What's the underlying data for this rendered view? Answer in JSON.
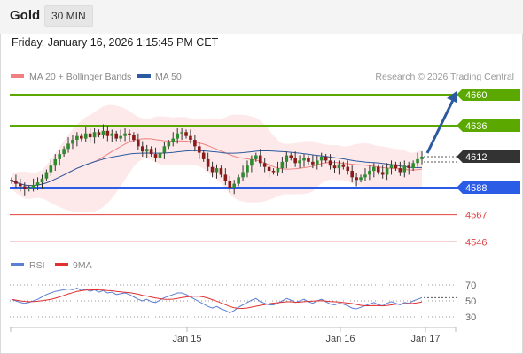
{
  "header": {
    "symbol": "Gold",
    "timeframe": "30 MIN",
    "datetime": "Friday, January 16, 2026 1:15:45 PM CET"
  },
  "legend": {
    "bollinger_label": "MA 20 + Bollinger Bands",
    "ma50_label": "MA 50",
    "credit": "Research © 2026 Trading Central",
    "bollinger_color": "#f08080",
    "ma50_color": "#2c5aa0"
  },
  "rsi_legend": {
    "rsi_label": "RSI",
    "ma_label": "9MA",
    "rsi_color": "#5b7fd4",
    "ma_color": "#e03030"
  },
  "levels": [
    {
      "value": 4660,
      "label": "4660",
      "kind": "resistance",
      "color": "#5aa800"
    },
    {
      "value": 4636,
      "label": "4636",
      "kind": "resistance",
      "color": "#5aa800"
    },
    {
      "value": 4612,
      "label": "4612",
      "kind": "current",
      "color": "#333333"
    },
    {
      "value": 4588,
      "label": "4588",
      "kind": "pivot",
      "color": "#2b5ce6"
    },
    {
      "value": 4567,
      "label": "4567",
      "kind": "support",
      "color": "#e04040"
    },
    {
      "value": 4546,
      "label": "4546",
      "kind": "support",
      "color": "#e04040"
    }
  ],
  "chart_data": [
    {
      "type": "candlestick",
      "title": "",
      "x_ticks": [
        "Jan 15",
        "Jan 16",
        "Jan 17"
      ],
      "ylim": [
        4540,
        4665
      ],
      "close": [
        4593,
        4591,
        4589,
        4587,
        4588,
        4590,
        4592,
        4595,
        4600,
        4605,
        4610,
        4614,
        4618,
        4622,
        4625,
        4628,
        4626,
        4630,
        4627,
        4631,
        4629,
        4632,
        4628,
        4630,
        4626,
        4628,
        4630,
        4629,
        4625,
        4620,
        4616,
        4618,
        4614,
        4611,
        4615,
        4620,
        4623,
        4626,
        4630,
        4631,
        4628,
        4625,
        4620,
        4615,
        4610,
        4604,
        4600,
        4603,
        4598,
        4593,
        4588,
        4591,
        4596,
        4600,
        4605,
        4610,
        4613,
        4607,
        4604,
        4601,
        4600,
        4603,
        4608,
        4613,
        4611,
        4607,
        4609,
        4611,
        4608,
        4606,
        4609,
        4612,
        4609,
        4605,
        4603,
        4606,
        4604,
        4601,
        4596,
        4594,
        4596,
        4598,
        4601,
        4604,
        4600,
        4598,
        4603,
        4606,
        4603,
        4600,
        4605,
        4603,
        4607,
        4610,
        4612
      ],
      "rsi": {
        "levels": [
          70,
          50,
          30
        ],
        "ylim": [
          20,
          80
        ],
        "values": [
          52,
          50,
          48,
          47,
          48,
          50,
          52,
          55,
          58,
          60,
          62,
          63,
          64,
          65,
          64,
          66,
          63,
          65,
          62,
          64,
          61,
          63,
          60,
          61,
          58,
          59,
          60,
          58,
          55,
          52,
          50,
          52,
          49,
          48,
          51,
          54,
          56,
          58,
          60,
          60,
          58,
          55,
          52,
          49,
          46,
          43,
          41,
          43,
          40,
          38,
          35,
          38,
          42,
          45,
          48,
          51,
          53,
          49,
          47,
          45,
          45,
          47,
          50,
          53,
          51,
          48,
          50,
          52,
          49,
          47,
          50,
          52,
          49,
          46,
          45,
          47,
          46,
          44,
          41,
          40,
          42,
          44,
          46,
          48,
          45,
          44,
          47,
          49,
          47,
          45,
          48,
          47,
          50,
          52,
          54
        ]
      }
    }
  ]
}
